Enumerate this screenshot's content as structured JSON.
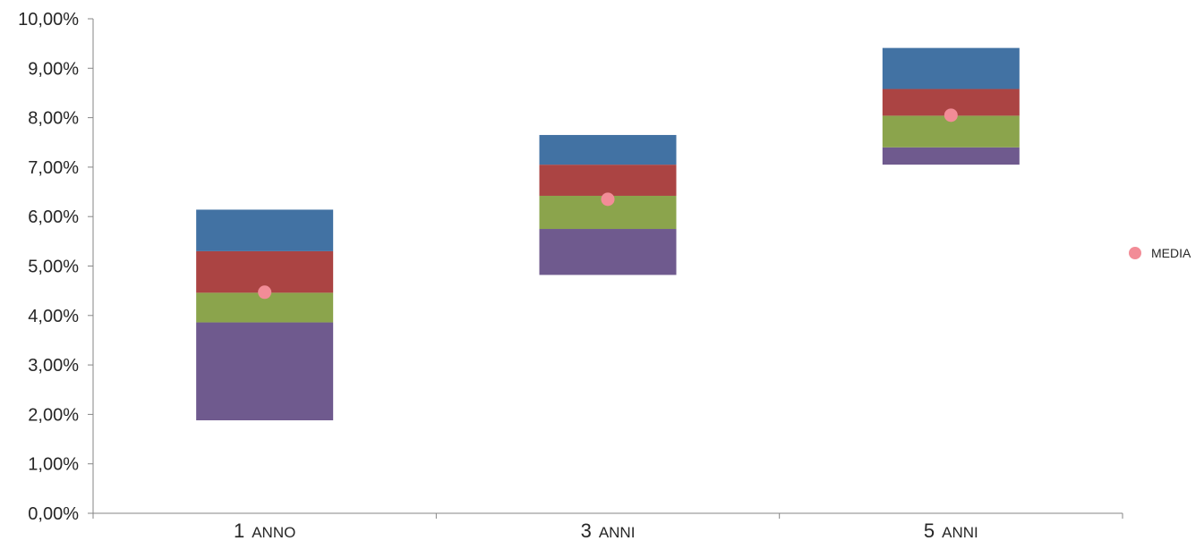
{
  "chart_data": {
    "type": "bar",
    "stacked": true,
    "floating": true,
    "categories": [
      "1 ANNO",
      "3 ANNI",
      "5 ANNI"
    ],
    "category_parts": [
      {
        "lead": "1",
        "rest": "ANNO"
      },
      {
        "lead": "3",
        "rest": "ANNI"
      },
      {
        "lead": "5",
        "rest": "ANNI"
      }
    ],
    "base": [
      1.88,
      4.82,
      7.05
    ],
    "series": [
      {
        "color": "#6F5A8E",
        "values": [
          1.98,
          0.93,
          0.35
        ]
      },
      {
        "color": "#8BA44C",
        "values": [
          0.6,
          0.67,
          0.64
        ]
      },
      {
        "color": "#AB4443",
        "values": [
          0.84,
          0.63,
          0.54
        ]
      },
      {
        "color": "#4272A3",
        "values": [
          0.84,
          0.6,
          0.83
        ]
      }
    ],
    "markers": {
      "name": "MEDIA",
      "color": "#F28C97",
      "values": [
        4.47,
        6.35,
        8.05
      ]
    },
    "ylim": [
      0,
      10
    ],
    "yticks": [
      0,
      1,
      2,
      3,
      4,
      5,
      6,
      7,
      8,
      9,
      10
    ],
    "ytick_labels": [
      "0,00%",
      "1,00%",
      "2,00%",
      "3,00%",
      "4,00%",
      "5,00%",
      "6,00%",
      "7,00%",
      "8,00%",
      "9,00%",
      "10,00%"
    ],
    "legend": {
      "placement": "right",
      "entries": [
        "MEDIA"
      ]
    },
    "grid": false
  }
}
